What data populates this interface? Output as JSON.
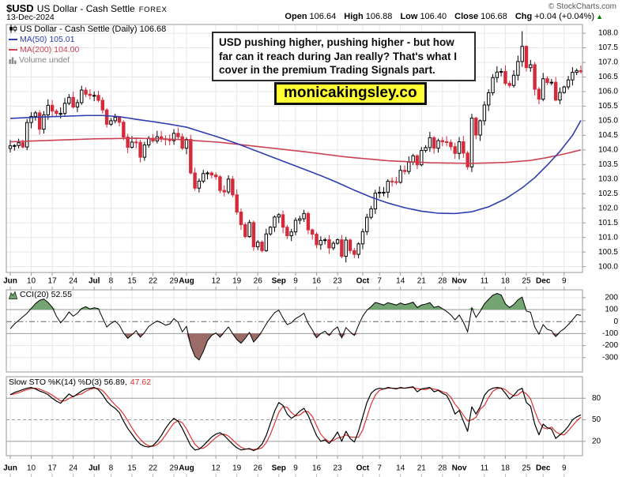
{
  "header": {
    "symbol": "$USD",
    "name": "US Dollar - Cash Settle",
    "exchange": "FOREX",
    "date": "13-Dec-2024",
    "copyright": "© StockCharts.com",
    "quote": {
      "open_label": "Open",
      "open": "106.64",
      "high_label": "High",
      "high": "106.88",
      "low_label": "Low",
      "low": "106.40",
      "close_label": "Close",
      "close": "106.68",
      "chg_label": "Chg",
      "chg": "+0.04 (+0.04%)",
      "chg_arrow": "▲"
    }
  },
  "main_legend": {
    "series": "US Dollar - Cash Settle (Daily) 106.68",
    "ma50": "MA(50) 105.01",
    "ma200": "MA(200) 104.00",
    "volume": "Volume undef"
  },
  "cci_legend": {
    "text": "CCI(20) 52.55"
  },
  "sto_legend": {
    "black": "Slow STO %K(14) %D(3) 56.89,",
    "red": "47.62"
  },
  "annotations": {
    "callout": "USD pushing higher, pushing higher - but how far can it reach during Jan really? That's what I cover in the premium Trading Signals part.",
    "watermark": "monicakingsley.co",
    "watermark_bg": "#ffff33"
  },
  "colors": {
    "ma50": "#2e3eb0",
    "ma200": "#cc4053",
    "candle_down": "#d42a3a",
    "candle_up_fill": "#ffffff",
    "cci_fill_above": "#74a471",
    "cci_fill_below": "#9b6b68",
    "sto_k": "#000000",
    "sto_d": "#e03131",
    "change_up": "#008000",
    "grid": "#e7e7e7",
    "level_line": "#9a9a9a",
    "border": "#999999"
  },
  "chart_data": [
    {
      "type": "candlestick",
      "title": "US Dollar - Cash Settle (Daily)",
      "last_close": 106.68,
      "ylim": [
        99.8,
        108.3
      ],
      "yticks": [
        108,
        107.5,
        107,
        106.5,
        106,
        105.5,
        105,
        104.5,
        104,
        103.5,
        103,
        102.5,
        102,
        101.5,
        101,
        100.5,
        100
      ],
      "xticks": [
        {
          "label": "Jun",
          "day": 0,
          "month": true
        },
        {
          "label": "10",
          "day": 5
        },
        {
          "label": "17",
          "day": 10
        },
        {
          "label": "24",
          "day": 15
        },
        {
          "label": "Jul",
          "day": 20,
          "month": true
        },
        {
          "label": "8",
          "day": 24
        },
        {
          "label": "15",
          "day": 29
        },
        {
          "label": "22",
          "day": 34
        },
        {
          "label": "29",
          "day": 39
        },
        {
          "label": "Aug",
          "day": 42,
          "month": true
        },
        {
          "label": "12",
          "day": 49
        },
        {
          "label": "19",
          "day": 54
        },
        {
          "label": "26",
          "day": 59
        },
        {
          "label": "Sep",
          "day": 64,
          "month": true
        },
        {
          "label": "9",
          "day": 68
        },
        {
          "label": "16",
          "day": 73
        },
        {
          "label": "23",
          "day": 78
        },
        {
          "label": "Oct",
          "day": 84,
          "month": true
        },
        {
          "label": "7",
          "day": 88
        },
        {
          "label": "14",
          "day": 93
        },
        {
          "label": "21",
          "day": 98
        },
        {
          "label": "28",
          "day": 103
        },
        {
          "label": "Nov",
          "day": 107,
          "month": true
        },
        {
          "label": "11",
          "day": 113
        },
        {
          "label": "18",
          "day": 118
        },
        {
          "label": "25",
          "day": 123
        },
        {
          "label": "Dec",
          "day": 127,
          "month": true
        },
        {
          "label": "9",
          "day": 132
        }
      ],
      "first_open": 104.05,
      "closes": [
        104.14,
        104.15,
        104.25,
        104.1,
        104.94,
        105.15,
        105.27,
        104.71,
        105.2,
        105.53,
        105.33,
        105.25,
        105.25,
        105.6,
        105.8,
        105.47,
        105.62,
        106.05,
        105.91,
        105.87,
        105.87,
        105.7,
        105.37,
        104.88,
        105.0,
        105.12,
        104.95,
        104.44,
        104.09,
        104.27,
        104.26,
        103.75,
        104.17,
        104.4,
        104.31,
        104.45,
        104.38,
        104.36,
        104.32,
        104.57,
        104.45,
        104.06,
        104.36,
        103.21,
        102.69,
        102.93,
        103.19,
        103.21,
        103.14,
        103.08,
        102.61,
        102.56,
        103.0,
        102.46,
        101.87,
        101.44,
        101.03,
        101.51,
        100.68,
        100.84,
        100.55,
        101.12,
        101.35,
        101.7,
        101.78,
        101.35,
        101.06,
        101.19,
        101.59,
        101.64,
        101.82,
        101.26,
        101.11,
        100.75,
        100.9,
        100.92,
        100.64,
        100.8,
        100.92,
        100.35,
        100.91,
        100.55,
        100.42,
        100.78,
        101.2,
        101.69,
        101.98,
        102.52,
        102.55,
        102.55,
        102.93,
        102.91,
        102.89,
        103.3,
        103.26,
        103.58,
        103.8,
        103.49,
        103.98,
        104.08,
        104.42,
        104.06,
        104.32,
        104.28,
        104.26,
        104.11,
        103.88,
        104.28,
        103.89,
        103.42,
        105.09,
        104.51,
        105.0,
        105.54,
        105.96,
        106.48,
        106.67,
        106.69,
        106.28,
        106.21,
        106.56,
        107.03,
        107.55,
        106.82,
        106.92,
        106.08,
        105.74,
        106.44,
        106.31,
        106.32,
        105.71,
        105.97,
        106.16,
        106.4,
        106.66,
        106.72,
        106.68
      ],
      "high_overrides": {
        "122": 108.07
      },
      "ma50": {
        "label": "MA(50)",
        "value": 105.01,
        "points": [
          [
            0,
            105.08
          ],
          [
            6,
            105.12
          ],
          [
            12,
            105.15
          ],
          [
            18,
            105.18
          ],
          [
            22,
            105.18
          ],
          [
            26,
            105.14
          ],
          [
            30,
            105.05
          ],
          [
            34,
            104.97
          ],
          [
            38,
            104.88
          ],
          [
            42,
            104.78
          ],
          [
            46,
            104.6
          ],
          [
            50,
            104.42
          ],
          [
            54,
            104.22
          ],
          [
            58,
            104.0
          ],
          [
            62,
            103.78
          ],
          [
            66,
            103.56
          ],
          [
            70,
            103.34
          ],
          [
            74,
            103.12
          ],
          [
            78,
            102.88
          ],
          [
            82,
            102.62
          ],
          [
            86,
            102.38
          ],
          [
            90,
            102.18
          ],
          [
            94,
            102.02
          ],
          [
            98,
            101.9
          ],
          [
            102,
            101.83
          ],
          [
            106,
            101.82
          ],
          [
            110,
            101.88
          ],
          [
            114,
            102.05
          ],
          [
            118,
            102.32
          ],
          [
            122,
            102.7
          ],
          [
            125,
            103.05
          ],
          [
            128,
            103.48
          ],
          [
            131,
            103.95
          ],
          [
            134,
            104.5
          ],
          [
            136,
            105.01
          ]
        ]
      },
      "ma200": {
        "label": "MA(200)",
        "value": 104.0,
        "points": [
          [
            0,
            104.28
          ],
          [
            10,
            104.33
          ],
          [
            20,
            104.38
          ],
          [
            30,
            104.4
          ],
          [
            40,
            104.36
          ],
          [
            50,
            104.26
          ],
          [
            60,
            104.1
          ],
          [
            70,
            103.94
          ],
          [
            80,
            103.76
          ],
          [
            90,
            103.63
          ],
          [
            100,
            103.56
          ],
          [
            110,
            103.54
          ],
          [
            118,
            103.57
          ],
          [
            124,
            103.64
          ],
          [
            128,
            103.74
          ],
          [
            132,
            103.86
          ],
          [
            136,
            104.0
          ]
        ]
      }
    },
    {
      "type": "area",
      "title": "CCI(20)",
      "last": 52.55,
      "ylim": [
        -420,
        265
      ],
      "yticks": [
        200,
        100,
        0,
        -100,
        -200,
        -300
      ],
      "levels": {
        "upper": 100,
        "zero": 0,
        "lower": -100
      },
      "values": [
        -60,
        -20,
        10,
        40,
        70,
        110,
        150,
        178,
        188,
        160,
        120,
        45,
        -10,
        30,
        80,
        45,
        70,
        110,
        125,
        105,
        115,
        108,
        30,
        -45,
        -15,
        5,
        -30,
        -95,
        -140,
        -110,
        -75,
        -130,
        -90,
        -40,
        -15,
        5,
        -10,
        -30,
        -20,
        25,
        -5,
        -85,
        -40,
        -200,
        -290,
        -320,
        -250,
        -160,
        -115,
        -95,
        -130,
        -85,
        -45,
        -100,
        -150,
        -180,
        -140,
        -90,
        -170,
        -130,
        -80,
        -20,
        30,
        75,
        95,
        30,
        -25,
        -10,
        25,
        45,
        70,
        -15,
        -70,
        -135,
        -100,
        -80,
        -115,
        -70,
        -45,
        -135,
        -50,
        -85,
        -115,
        -30,
        45,
        95,
        125,
        160,
        150,
        138,
        158,
        148,
        138,
        155,
        142,
        150,
        162,
        118,
        138,
        146,
        158,
        118,
        128,
        108,
        85,
        55,
        15,
        55,
        -5,
        -85,
        115,
        35,
        85,
        148,
        185,
        220,
        235,
        222,
        148,
        118,
        142,
        182,
        205,
        88,
        78,
        -45,
        -105,
        -25,
        -65,
        -75,
        -125,
        -85,
        -60,
        -25,
        15,
        58,
        52.55
      ]
    },
    {
      "type": "line",
      "title": "Slow STO %K(14) %D(3)",
      "last_k": 56.89,
      "last_d": 47.62,
      "ylim": [
        0,
        110
      ],
      "yticks": [
        80,
        50,
        20
      ],
      "levels": {
        "upper": 80,
        "mid": 50,
        "lower": 20
      },
      "d_period": 3,
      "k": [
        85,
        88,
        90,
        92,
        94,
        95,
        93,
        90,
        88,
        85,
        80,
        76,
        73,
        80,
        86,
        82,
        86,
        90,
        93,
        94,
        95,
        92,
        85,
        76,
        70,
        66,
        60,
        48,
        38,
        30,
        22,
        16,
        13,
        12,
        14,
        20,
        28,
        38,
        46,
        52,
        48,
        38,
        26,
        14,
        8,
        9,
        14,
        20,
        26,
        30,
        32,
        28,
        22,
        16,
        11,
        8,
        9,
        10,
        7,
        10,
        16,
        28,
        45,
        62,
        74,
        70,
        58,
        52,
        56,
        62,
        66,
        56,
        42,
        28,
        20,
        22,
        17,
        24,
        33,
        20,
        34,
        24,
        19,
        34,
        54,
        74,
        87,
        92,
        94,
        93,
        95,
        94,
        93,
        95,
        94,
        95,
        96,
        89,
        93,
        94,
        95,
        89,
        91,
        87,
        84,
        73,
        58,
        63,
        48,
        34,
        68,
        58,
        68,
        84,
        91,
        94,
        95,
        94,
        87,
        79,
        84,
        91,
        94,
        74,
        69,
        44,
        29,
        44,
        39,
        37,
        24,
        29,
        34,
        41,
        50,
        54,
        56.89
      ]
    }
  ]
}
